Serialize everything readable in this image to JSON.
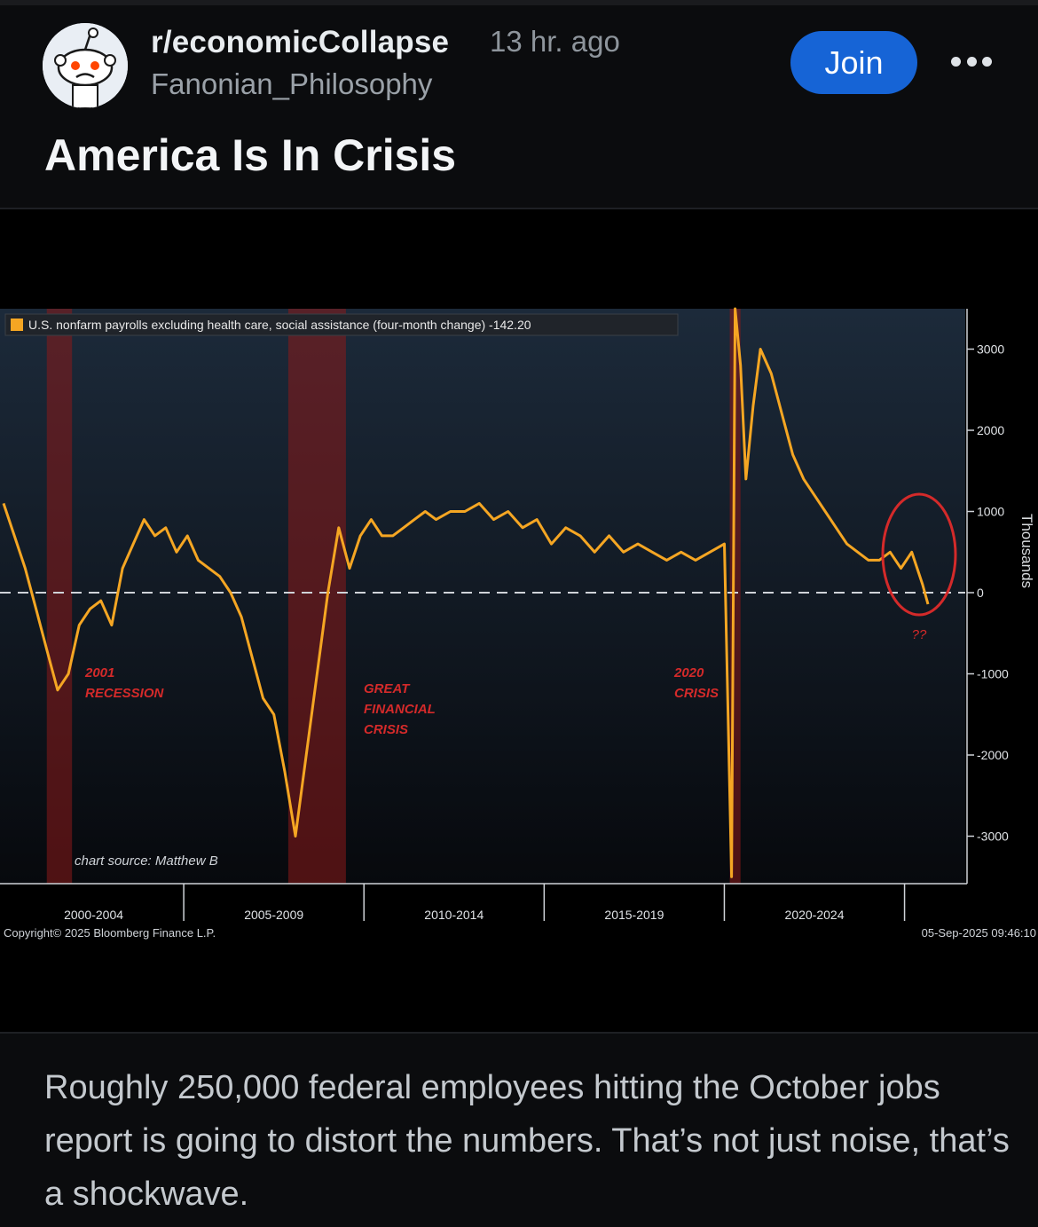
{
  "post": {
    "subreddit": "r/economicCollapse",
    "time_ago": "13 hr. ago",
    "author": "Fanonian_Philosophy",
    "join_label": "Join",
    "more_icon": "more-dots-icon",
    "title": "America Is In Crisis",
    "body": "Roughly 250,000 federal employees hitting the October jobs report is going to distort the numbers. That’s not just noise, that’s a shockwave."
  },
  "colors": {
    "accent": "#1664d6",
    "series": "#f5a623",
    "recession": "#8a1a1a",
    "annotation": "#d42a2a"
  },
  "chart_data": {
    "type": "line",
    "legend": "U.S. nonfarm payrolls excluding health care, social assistance (four-month change) -142.20",
    "yaxis_title": "Thousands",
    "ylim": [
      -3500,
      3500
    ],
    "y_ticks": [
      "3000",
      "2000",
      "1000",
      "0",
      "-1000",
      "-2000",
      "-3000"
    ],
    "x_ticks": [
      "2000-2004",
      "2005-2009",
      "2010-2014",
      "2015-2019",
      "2020-2024"
    ],
    "recession_labels": [
      {
        "label": "2001\nRECESSION"
      },
      {
        "label": "GREAT\nFINANCIAL\nCRISIS"
      },
      {
        "label": "2020\nCRISIS"
      }
    ],
    "annotation": "??",
    "source_note": "chart source: Matthew B",
    "copyright": "Copyright© 2025 Bloomberg Finance L.P.",
    "timestamp": "05-Sep-2025 09:46:10",
    "series": [
      {
        "name": "U.S. nonfarm payrolls excluding health care, social assistance (four-month change)",
        "x": [
          2000.0,
          2000.3,
          2000.6,
          2000.9,
          2001.2,
          2001.5,
          2001.8,
          2002.1,
          2002.4,
          2002.7,
          2003.0,
          2003.3,
          2003.6,
          2003.9,
          2004.2,
          2004.5,
          2004.8,
          2005.1,
          2005.4,
          2005.7,
          2006.0,
          2006.3,
          2006.6,
          2006.9,
          2007.2,
          2007.5,
          2007.8,
          2008.1,
          2008.4,
          2008.7,
          2009.0,
          2009.3,
          2009.6,
          2009.9,
          2010.2,
          2010.5,
          2010.8,
          2011.1,
          2011.4,
          2011.7,
          2012.0,
          2012.4,
          2012.8,
          2013.2,
          2013.6,
          2014.0,
          2014.4,
          2014.8,
          2015.2,
          2015.6,
          2016.0,
          2016.4,
          2016.8,
          2017.2,
          2017.6,
          2018.0,
          2018.4,
          2018.8,
          2019.2,
          2019.6,
          2020.0,
          2020.2,
          2020.3,
          2020.45,
          2020.6,
          2020.8,
          2021.0,
          2021.3,
          2021.6,
          2021.9,
          2022.2,
          2022.5,
          2022.8,
          2023.1,
          2023.4,
          2023.7,
          2024.0,
          2024.3,
          2024.6,
          2024.9,
          2025.2,
          2025.5,
          2025.65
        ],
        "y": [
          1100,
          700,
          300,
          -200,
          -700,
          -1200,
          -1000,
          -400,
          -200,
          -100,
          -400,
          300,
          600,
          900,
          700,
          800,
          500,
          700,
          400,
          300,
          200,
          0,
          -300,
          -800,
          -1300,
          -1500,
          -2200,
          -3000,
          -2000,
          -1000,
          0,
          800,
          300,
          700,
          900,
          700,
          700,
          800,
          900,
          1000,
          900,
          1000,
          1000,
          1100,
          900,
          1000,
          800,
          900,
          600,
          800,
          700,
          500,
          700,
          500,
          600,
          500,
          400,
          500,
          400,
          500,
          600,
          -3500,
          3500,
          2800,
          1400,
          2300,
          3000,
          2700,
          2200,
          1700,
          1400,
          1200,
          1000,
          800,
          600,
          500,
          400,
          400,
          500,
          300,
          500,
          100,
          -142
        ]
      }
    ],
    "recessions": [
      [
        2001.2,
        2001.9
      ],
      [
        2007.9,
        2009.5
      ],
      [
        2020.15,
        2020.45
      ]
    ]
  }
}
